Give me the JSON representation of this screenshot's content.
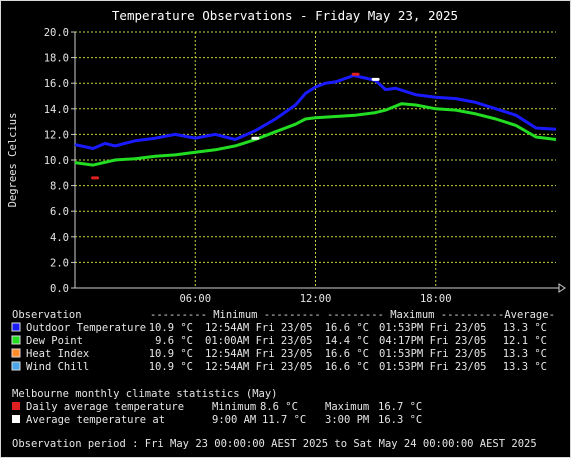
{
  "colors": {
    "outdoor": "#1a1aff",
    "dew": "#22dd22",
    "heat": "#ff8c28",
    "chill": "#4aa6e8",
    "climate_avg": "#e02020",
    "climate_point": "#ffffff",
    "grid": "#c8d23c"
  },
  "chart_data": {
    "type": "line",
    "title": "Temperature Observations - Friday May 23, 2025",
    "ylabel": "Degrees Celcius",
    "xlabel": "",
    "ylim": [
      0,
      20
    ],
    "xlim_hours": [
      0,
      24
    ],
    "y_ticks": [
      "0.0",
      "2.0",
      "4.0",
      "6.0",
      "8.0",
      "10.0",
      "12.0",
      "14.0",
      "16.0",
      "18.0",
      "20.0"
    ],
    "x_ticks": [
      {
        "hour": 6,
        "label": "06:00"
      },
      {
        "hour": 12,
        "label": "12:00"
      },
      {
        "hour": 18,
        "label": "18:00"
      }
    ],
    "grid": true,
    "series": [
      {
        "name": "Outdoor Temperature",
        "color_key": "outdoor",
        "points": [
          [
            0,
            11.2
          ],
          [
            0.9,
            10.9
          ],
          [
            1.5,
            11.3
          ],
          [
            2,
            11.1
          ],
          [
            3,
            11.5
          ],
          [
            4,
            11.7
          ],
          [
            5,
            12.0
          ],
          [
            6,
            11.7
          ],
          [
            7,
            12.0
          ],
          [
            8,
            11.6
          ],
          [
            9,
            12.3
          ],
          [
            10,
            13.2
          ],
          [
            11,
            14.3
          ],
          [
            11.5,
            15.2
          ],
          [
            12,
            15.7
          ],
          [
            12.5,
            16.0
          ],
          [
            13,
            16.1
          ],
          [
            13.9,
            16.6
          ],
          [
            14.5,
            16.4
          ],
          [
            15,
            16.2
          ],
          [
            15.5,
            15.5
          ],
          [
            16,
            15.6
          ],
          [
            17,
            15.1
          ],
          [
            18,
            14.9
          ],
          [
            19,
            14.8
          ],
          [
            20,
            14.5
          ],
          [
            21,
            14.0
          ],
          [
            22,
            13.5
          ],
          [
            23,
            12.5
          ],
          [
            24,
            12.4
          ]
        ]
      },
      {
        "name": "Dew Point",
        "color_key": "dew",
        "points": [
          [
            0,
            9.8
          ],
          [
            0.9,
            9.6
          ],
          [
            2,
            10.0
          ],
          [
            3,
            10.1
          ],
          [
            4,
            10.3
          ],
          [
            5,
            10.4
          ],
          [
            6,
            10.6
          ],
          [
            7,
            10.8
          ],
          [
            8,
            11.1
          ],
          [
            9,
            11.6
          ],
          [
            10,
            12.2
          ],
          [
            11,
            12.8
          ],
          [
            11.5,
            13.2
          ],
          [
            12,
            13.3
          ],
          [
            13,
            13.4
          ],
          [
            14,
            13.5
          ],
          [
            15,
            13.7
          ],
          [
            15.5,
            13.9
          ],
          [
            16.3,
            14.4
          ],
          [
            17,
            14.3
          ],
          [
            18,
            14.0
          ],
          [
            19,
            13.9
          ],
          [
            20,
            13.6
          ],
          [
            21,
            13.2
          ],
          [
            22,
            12.7
          ],
          [
            23,
            11.8
          ],
          [
            24,
            11.6
          ]
        ]
      }
    ],
    "climate_markers": [
      {
        "hour": 1.0,
        "value": 8.6,
        "color_key": "climate_avg"
      },
      {
        "hour": 14.0,
        "value": 16.7,
        "color_key": "climate_avg"
      },
      {
        "hour": 9.0,
        "value": 11.7,
        "color_key": "climate_point"
      },
      {
        "hour": 15.0,
        "value": 16.3,
        "color_key": "climate_point"
      }
    ]
  },
  "stats": {
    "header": {
      "observation": "Observation",
      "minimum": "--------- Minimum ---------",
      "maximum": "--------- Maximum ---------",
      "average": "-Average-"
    },
    "rows": [
      {
        "name": "Outdoor Temperature",
        "color_key": "outdoor",
        "min": "10.9 °C",
        "min_time": "12:54AM Fri 23/05",
        "max": "16.6 °C",
        "max_time": "01:53PM Fri 23/05",
        "avg": "13.3 °C"
      },
      {
        "name": "Dew Point",
        "color_key": "dew",
        "min": "9.6 °C",
        "min_time": "01:00AM Fri 23/05",
        "max": "14.4 °C",
        "max_time": "04:17PM Fri 23/05",
        "avg": "12.1 °C"
      },
      {
        "name": "Heat Index",
        "color_key": "heat",
        "min": "10.9 °C",
        "min_time": "12:54AM Fri 23/05",
        "max": "16.6 °C",
        "max_time": "01:53PM Fri 23/05",
        "avg": "13.3 °C"
      },
      {
        "name": "Wind Chill",
        "color_key": "chill",
        "min": "10.9 °C",
        "min_time": "12:54AM Fri 23/05",
        "max": "16.6 °C",
        "max_time": "01:53PM Fri 23/05",
        "avg": "13.3 °C"
      }
    ]
  },
  "climate": {
    "header": "Melbourne monthly climate statistics (May)",
    "daily_label": "Daily average temperature",
    "daily_min_label": "Minimum",
    "daily_min": "8.6 °C",
    "daily_max_label": "Maximum",
    "daily_max": "16.7 °C",
    "avg_label": "Average temperature at",
    "avg_time1": "9:00 AM",
    "avg_val1": "11.7 °C",
    "avg_time2": "3:00 PM",
    "avg_val2": "16.3 °C"
  },
  "footer": "Observation period : Fri May 23 00:00:00 AEST 2025 to Sat May 24 00:00:00 AEST 2025"
}
